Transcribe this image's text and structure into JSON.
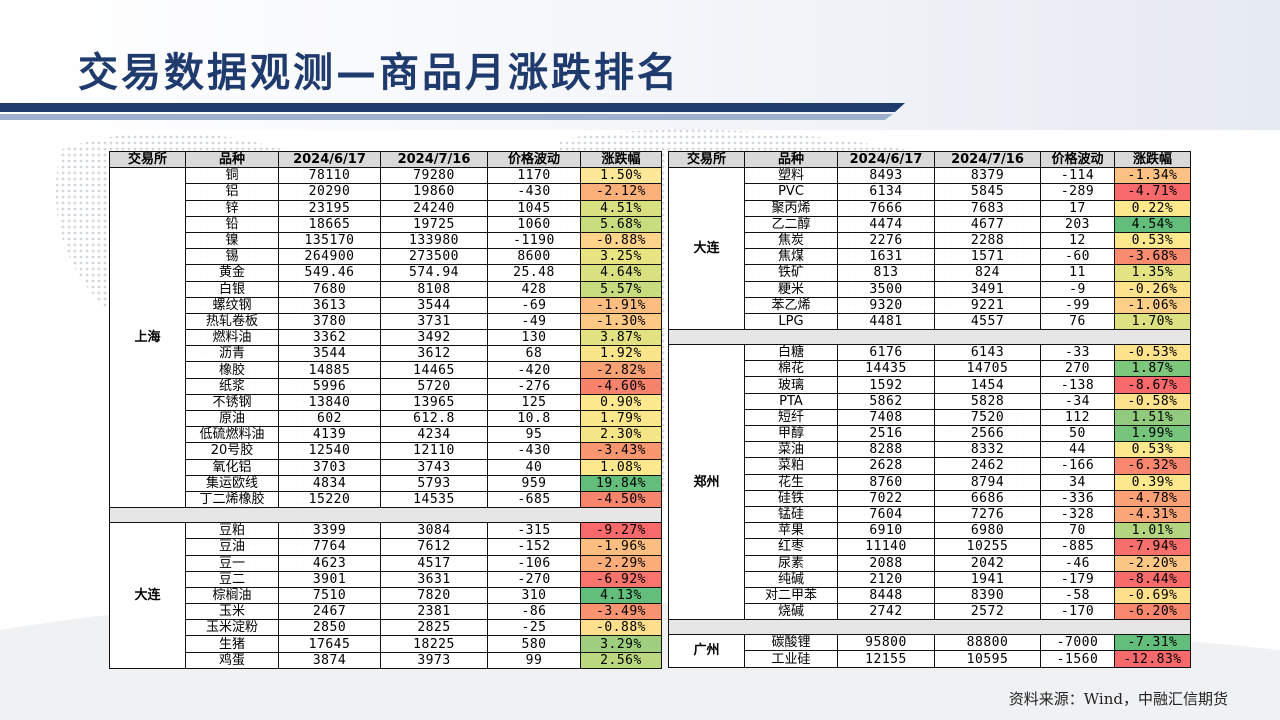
{
  "title": "交易数据观测—商品月涨跌排名",
  "source": "资料来源：Wind，中融汇信期货",
  "headers": [
    "交易所",
    "品种",
    "2024/6/17",
    "2024/7/16",
    "价格波动",
    "涨跌幅"
  ],
  "left_table": {
    "groups": [
      {
        "exchange": "上海",
        "rows": [
          {
            "name": "铜",
            "p1": "78110",
            "p2": "79280",
            "chg": "1170",
            "pct": "1.50%",
            "color": "#fde799"
          },
          {
            "name": "铝",
            "p1": "20290",
            "p2": "19860",
            "chg": "-430",
            "pct": "-2.12%",
            "color": "#fbb07a"
          },
          {
            "name": "锌",
            "p1": "23195",
            "p2": "24240",
            "chg": "1045",
            "pct": "4.51%",
            "color": "#d8e07f"
          },
          {
            "name": "铅",
            "p1": "18665",
            "p2": "19725",
            "chg": "1060",
            "pct": "5.68%",
            "color": "#c7dc7f"
          },
          {
            "name": "镍",
            "p1": "135170",
            "p2": "133980",
            "chg": "-1190",
            "pct": "-0.88%",
            "color": "#fdd48a"
          },
          {
            "name": "锡",
            "p1": "264900",
            "p2": "273500",
            "chg": "8600",
            "pct": "3.25%",
            "color": "#e9e482"
          },
          {
            "name": "黄金",
            "p1": "549.46",
            "p2": "574.94",
            "chg": "25.48",
            "pct": "4.64%",
            "color": "#d8e07f"
          },
          {
            "name": "白银",
            "p1": "7680",
            "p2": "8108",
            "chg": "428",
            "pct": "5.57%",
            "color": "#c7dc7f"
          },
          {
            "name": "螺纹钢",
            "p1": "3613",
            "p2": "3544",
            "chg": "-69",
            "pct": "-1.91%",
            "color": "#fcbe80"
          },
          {
            "name": "热轧卷板",
            "p1": "3780",
            "p2": "3731",
            "chg": "-49",
            "pct": "-1.30%",
            "color": "#fdc985"
          },
          {
            "name": "燃料油",
            "p1": "3362",
            "p2": "3492",
            "chg": "130",
            "pct": "3.87%",
            "color": "#e2e282"
          },
          {
            "name": "沥青",
            "p1": "3544",
            "p2": "3612",
            "chg": "68",
            "pct": "1.92%",
            "color": "#f9e68a"
          },
          {
            "name": "橡胶",
            "p1": "14885",
            "p2": "14465",
            "chg": "-420",
            "pct": "-2.82%",
            "color": "#f9a175"
          },
          {
            "name": "纸浆",
            "p1": "5996",
            "p2": "5720",
            "chg": "-276",
            "pct": "-4.60%",
            "color": "#f7836c"
          },
          {
            "name": "不锈钢",
            "p1": "13840",
            "p2": "13965",
            "chg": "125",
            "pct": "0.90%",
            "color": "#fee98f"
          },
          {
            "name": "原油",
            "p1": "602",
            "p2": "612.8",
            "chg": "10.8",
            "pct": "1.79%",
            "color": "#fbe78b"
          },
          {
            "name": "低硫燃料油",
            "p1": "4139",
            "p2": "4234",
            "chg": "95",
            "pct": "2.30%",
            "color": "#f4e587"
          },
          {
            "name": "20号胶",
            "p1": "12540",
            "p2": "12110",
            "chg": "-430",
            "pct": "-3.43%",
            "color": "#f89670"
          },
          {
            "name": "氧化铝",
            "p1": "3703",
            "p2": "3743",
            "chg": "40",
            "pct": "1.08%",
            "color": "#fee88e"
          },
          {
            "name": "集运欧线",
            "p1": "4834",
            "p2": "5793",
            "chg": "959",
            "pct": "19.84%",
            "color": "#63be7b"
          },
          {
            "name": "丁二烯橡胶",
            "p1": "15220",
            "p2": "14535",
            "chg": "-685",
            "pct": "-4.50%",
            "color": "#f7846c"
          }
        ]
      },
      {
        "exchange": "大连",
        "rows": [
          {
            "name": "豆粕",
            "p1": "3399",
            "p2": "3084",
            "chg": "-315",
            "pct": "-9.27%",
            "color": "#f8696b"
          },
          {
            "name": "豆油",
            "p1": "7764",
            "p2": "7612",
            "chg": "-152",
            "pct": "-1.96%",
            "color": "#fcbe80"
          },
          {
            "name": "豆一",
            "p1": "4623",
            "p2": "4517",
            "chg": "-106",
            "pct": "-2.29%",
            "color": "#fbad79"
          },
          {
            "name": "豆二",
            "p1": "3901",
            "p2": "3631",
            "chg": "-270",
            "pct": "-6.92%",
            "color": "#f8746d"
          },
          {
            "name": "棕榈油",
            "p1": "7510",
            "p2": "7820",
            "chg": "310",
            "pct": "4.13%",
            "color": "#63be7b"
          },
          {
            "name": "玉米",
            "p1": "2467",
            "p2": "2381",
            "chg": "-86",
            "pct": "-3.49%",
            "color": "#f99370"
          },
          {
            "name": "玉米淀粉",
            "p1": "2850",
            "p2": "2825",
            "chg": "-25",
            "pct": "-0.88%",
            "color": "#fee08c"
          },
          {
            "name": "生猪",
            "p1": "17645",
            "p2": "18225",
            "chg": "580",
            "pct": "3.29%",
            "color": "#9fcf7e"
          },
          {
            "name": "鸡蛋",
            "p1": "3874",
            "p2": "3973",
            "chg": "99",
            "pct": "2.56%",
            "color": "#bbd880"
          }
        ]
      }
    ]
  },
  "right_table": {
    "groups": [
      {
        "exchange": "大连",
        "rows": [
          {
            "name": "塑料",
            "p1": "8493",
            "p2": "8379",
            "chg": "-114",
            "pct": "-1.34%",
            "color": "#fcc283"
          },
          {
            "name": "PVC",
            "p1": "6134",
            "p2": "5845",
            "chg": "-289",
            "pct": "-4.71%",
            "color": "#f8696b"
          },
          {
            "name": "聚丙烯",
            "p1": "7666",
            "p2": "7683",
            "chg": "17",
            "pct": "0.22%",
            "color": "#fee88e"
          },
          {
            "name": "乙二醇",
            "p1": "4474",
            "p2": "4677",
            "chg": "203",
            "pct": "4.54%",
            "color": "#63be7b"
          },
          {
            "name": "焦炭",
            "p1": "2276",
            "p2": "2288",
            "chg": "12",
            "pct": "0.53%",
            "color": "#fde88d"
          },
          {
            "name": "焦煤",
            "p1": "1631",
            "p2": "1571",
            "chg": "-60",
            "pct": "-3.68%",
            "color": "#f98b6f"
          },
          {
            "name": "铁矿",
            "p1": "813",
            "p2": "824",
            "chg": "11",
            "pct": "1.35%",
            "color": "#e4e383"
          },
          {
            "name": "粳米",
            "p1": "3500",
            "p2": "3491",
            "chg": "-9",
            "pct": "-0.26%",
            "color": "#fee38c"
          },
          {
            "name": "苯乙烯",
            "p1": "9320",
            "p2": "9221",
            "chg": "-99",
            "pct": "-1.06%",
            "color": "#fdcf87"
          },
          {
            "name": "LPG",
            "p1": "4481",
            "p2": "4557",
            "chg": "76",
            "pct": "1.70%",
            "color": "#dde182"
          }
        ]
      },
      {
        "exchange": "郑州",
        "rows": [
          {
            "name": "白糖",
            "p1": "6176",
            "p2": "6143",
            "chg": "-33",
            "pct": "-0.53%",
            "color": "#fee38c"
          },
          {
            "name": "棉花",
            "p1": "14435",
            "p2": "14705",
            "chg": "270",
            "pct": "1.87%",
            "color": "#7dc77c"
          },
          {
            "name": "玻璃",
            "p1": "1592",
            "p2": "1454",
            "chg": "-138",
            "pct": "-8.67%",
            "color": "#f8696b"
          },
          {
            "name": "PTA",
            "p1": "5862",
            "p2": "5828",
            "chg": "-34",
            "pct": "-0.58%",
            "color": "#fee28c"
          },
          {
            "name": "短纤",
            "p1": "7408",
            "p2": "7520",
            "chg": "112",
            "pct": "1.51%",
            "color": "#92cb7d"
          },
          {
            "name": "甲醇",
            "p1": "2516",
            "p2": "2566",
            "chg": "50",
            "pct": "1.99%",
            "color": "#77c57c"
          },
          {
            "name": "菜油",
            "p1": "8288",
            "p2": "8332",
            "chg": "44",
            "pct": "0.53%",
            "color": "#fde88d"
          },
          {
            "name": "菜粕",
            "p1": "2628",
            "p2": "2462",
            "chg": "-166",
            "pct": "-6.32%",
            "color": "#f9866e"
          },
          {
            "name": "花生",
            "p1": "8760",
            "p2": "8794",
            "chg": "34",
            "pct": "0.39%",
            "color": "#fee88e"
          },
          {
            "name": "硅铁",
            "p1": "7022",
            "p2": "6686",
            "chg": "-336",
            "pct": "-4.78%",
            "color": "#faa076"
          },
          {
            "name": "锰硅",
            "p1": "7604",
            "p2": "7276",
            "chg": "-328",
            "pct": "-4.31%",
            "color": "#faa678"
          },
          {
            "name": "苹果",
            "p1": "6910",
            "p2": "6980",
            "chg": "70",
            "pct": "1.01%",
            "color": "#b3d57f"
          },
          {
            "name": "红枣",
            "p1": "11140",
            "p2": "10255",
            "chg": "-885",
            "pct": "-7.94%",
            "color": "#f8706c"
          },
          {
            "name": "尿素",
            "p1": "2088",
            "p2": "2042",
            "chg": "-46",
            "pct": "-2.20%",
            "color": "#fcc784"
          },
          {
            "name": "纯碱",
            "p1": "2120",
            "p2": "1941",
            "chg": "-179",
            "pct": "-8.44%",
            "color": "#f86b6b"
          },
          {
            "name": "对二甲苯",
            "p1": "8448",
            "p2": "8390",
            "chg": "-58",
            "pct": "-0.69%",
            "color": "#fee08b"
          },
          {
            "name": "烧碱",
            "p1": "2742",
            "p2": "2572",
            "chg": "-170",
            "pct": "-6.20%",
            "color": "#f9876e"
          }
        ]
      },
      {
        "exchange": "广州",
        "rows": [
          {
            "name": "碳酸锂",
            "p1": "95800",
            "p2": "88800",
            "chg": "-7000",
            "pct": "-7.31%",
            "color": "#63be7b"
          },
          {
            "name": "工业硅",
            "p1": "12155",
            "p2": "10595",
            "chg": "-1560",
            "pct": "-12.83%",
            "color": "#f8696b"
          }
        ]
      }
    ]
  }
}
